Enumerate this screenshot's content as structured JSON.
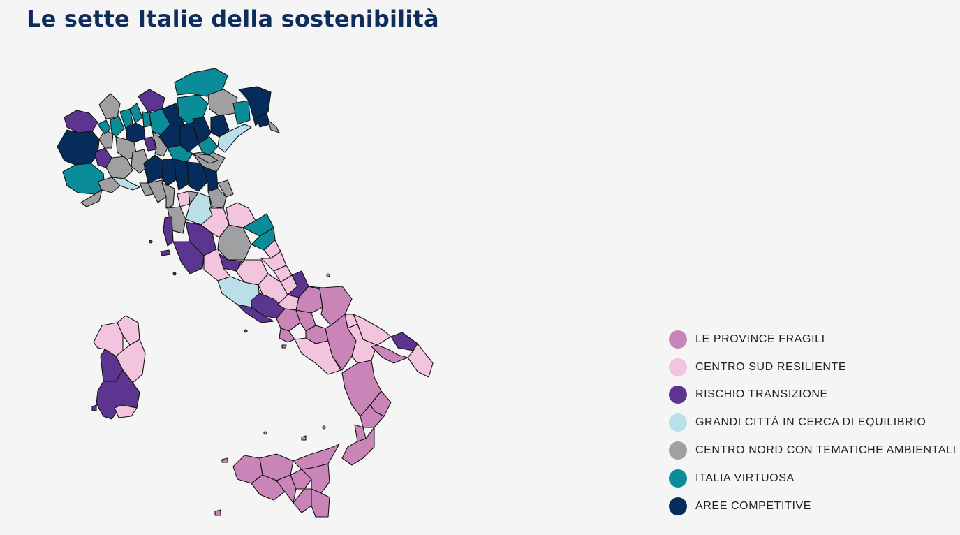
{
  "title": "Le sette Italie della sostenibilità",
  "legend": [
    {
      "label": "LE PROVINCE FRAGILI",
      "color": "#c985b8"
    },
    {
      "label": "CENTRO SUD RESILIENTE",
      "color": "#f2c4dd"
    },
    {
      "label": "RISCHIO TRANSIZIONE",
      "color": "#5b3590"
    },
    {
      "label": "GRANDI CITTÀ IN CERCA DI EQUILIBRIO",
      "color": "#badfe8"
    },
    {
      "label": "CENTRO NORD CON TEMATICHE AMBIENTALI",
      "color": "#a0a0a2"
    },
    {
      "label": "ITALIA VIRTUOSA",
      "color": "#0a8c99"
    },
    {
      "label": "AREE COMPETITIVE",
      "color": "#062c5b"
    }
  ]
}
